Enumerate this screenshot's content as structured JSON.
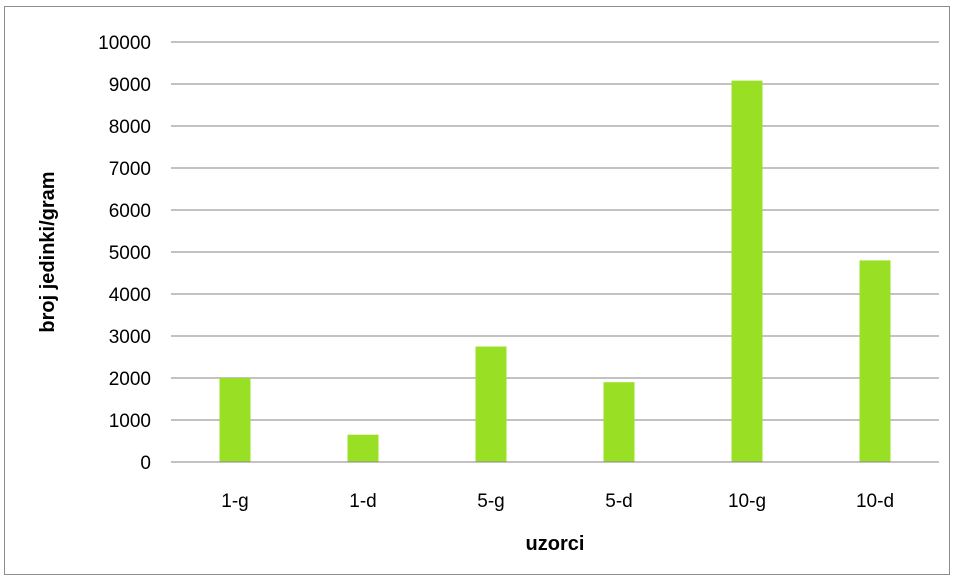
{
  "chart_data": {
    "type": "bar",
    "categories": [
      "1-g",
      "1-d",
      "5-g",
      "5-d",
      "10-g",
      "10-d"
    ],
    "values": [
      2000,
      650,
      2750,
      1900,
      9080,
      4800
    ],
    "xlabel": "uzorci",
    "ylabel": "broj jedinki/gram",
    "ylim": [
      0,
      10000
    ],
    "yticks": [
      "0",
      "1000",
      "2000",
      "3000",
      "4000",
      "5000",
      "6000",
      "7000",
      "8000",
      "9000",
      "10000"
    ],
    "grid": true,
    "legend": "none",
    "colors": {
      "bar": "#99e024",
      "grid": "#868686",
      "frame": "#8c8c8c"
    }
  }
}
